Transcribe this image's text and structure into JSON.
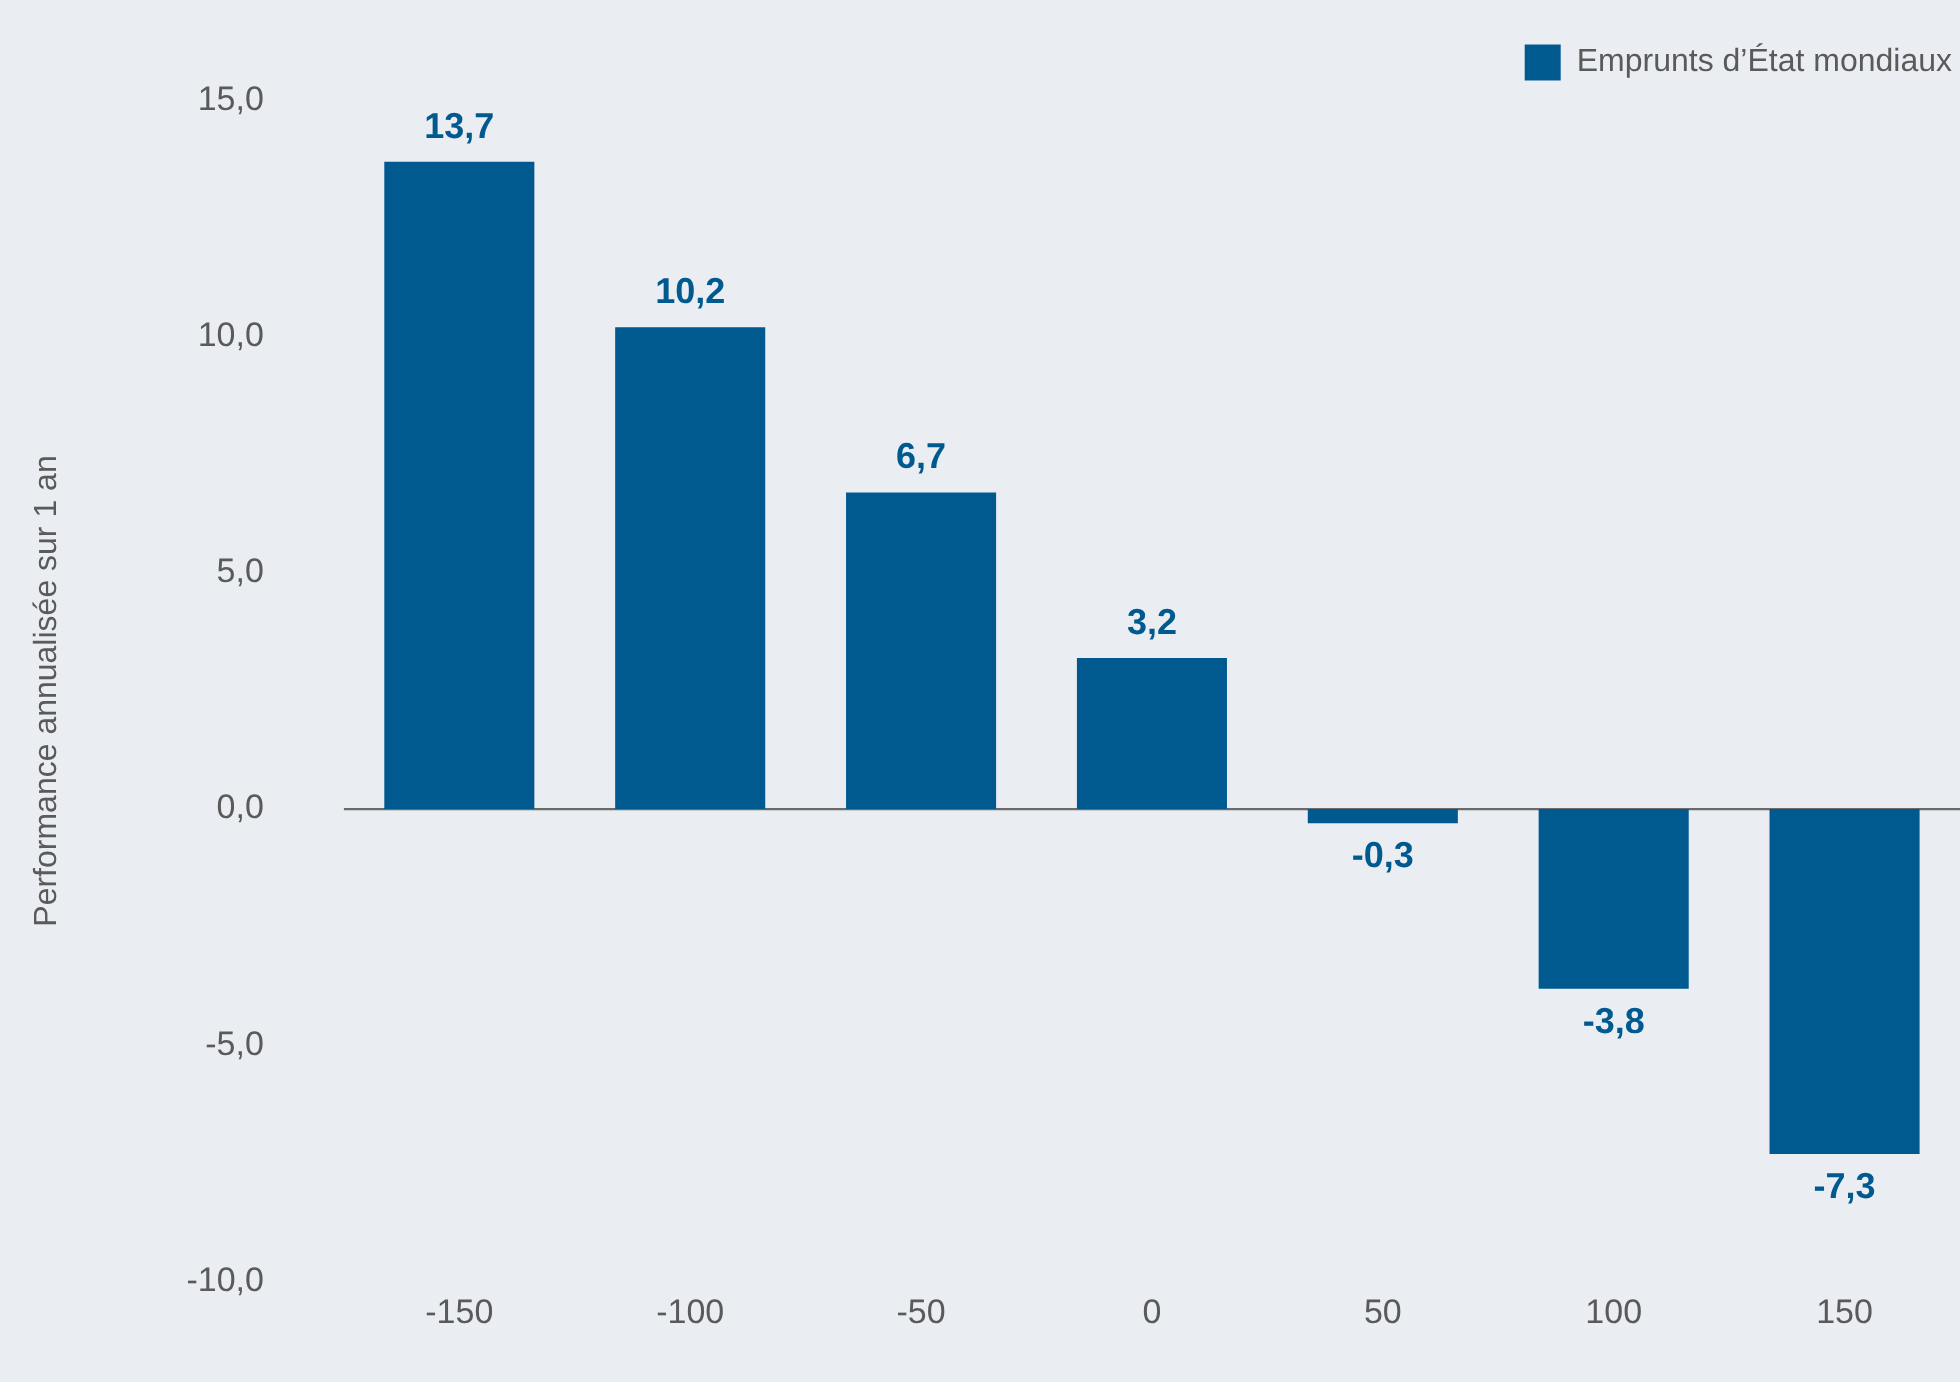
{
  "chart_data": {
    "type": "bar",
    "ylabel": "Performance annualisée sur 1 an",
    "categories": [
      "-150",
      "-100",
      "-50",
      "0",
      "50",
      "100",
      "150"
    ],
    "series": [
      {
        "name": "Emprunts d’État mondiaux",
        "color": "#005a8f",
        "values": [
          13.7,
          10.2,
          6.7,
          3.2,
          -0.3,
          -3.8,
          -7.3
        ],
        "value_labels": [
          "13,7",
          "10,2",
          "6,7",
          "3,2",
          "-0,3",
          "-3,8",
          "-7,3"
        ]
      }
    ],
    "ylim": [
      -10,
      15
    ],
    "yticks": [
      {
        "value": -10,
        "label": "-10,0"
      },
      {
        "value": -5,
        "label": "-5,0"
      },
      {
        "value": 0,
        "label": "0,0"
      },
      {
        "value": 5,
        "label": "5,0"
      },
      {
        "value": 10,
        "label": "10,0"
      },
      {
        "value": 15,
        "label": "15,0"
      }
    ],
    "ref_lines": [
      {
        "axis": "y",
        "value": 0,
        "color": "#6b6b6b"
      }
    ],
    "grid": false,
    "legend": "top right"
  }
}
